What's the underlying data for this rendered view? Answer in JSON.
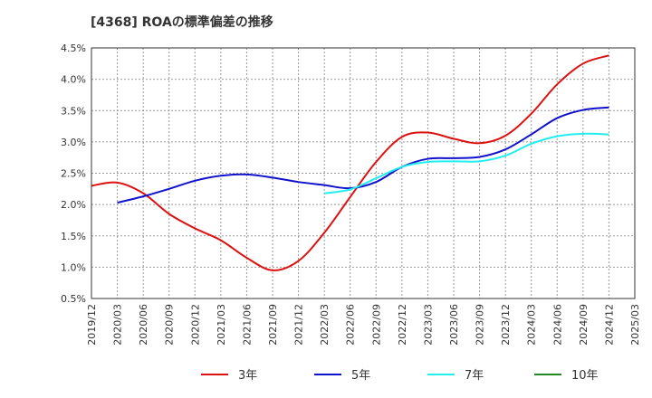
{
  "chart_data": {
    "type": "line",
    "title": "[4368]  ROAの標準偏差の推移",
    "xlabel": "",
    "ylabel": "",
    "ylim": [
      0.5,
      4.5
    ],
    "y_ticks": [
      "0.5%",
      "1.0%",
      "1.5%",
      "2.0%",
      "2.5%",
      "3.0%",
      "3.5%",
      "4.0%",
      "4.5%"
    ],
    "y_tick_values": [
      0.5,
      1.0,
      1.5,
      2.0,
      2.5,
      3.0,
      3.5,
      4.0,
      4.5
    ],
    "x_ticks": [
      "2019/12",
      "2020/03",
      "2020/06",
      "2020/09",
      "2020/12",
      "2021/03",
      "2021/06",
      "2021/09",
      "2021/12",
      "2022/03",
      "2022/06",
      "2022/09",
      "2022/12",
      "2023/03",
      "2023/06",
      "2023/09",
      "2023/12",
      "2024/03",
      "2024/06",
      "2024/09",
      "2024/12",
      "2025/03"
    ],
    "grid": true,
    "legend_position": "bottom",
    "series": [
      {
        "name": "3年",
        "color": "#dd1111",
        "x": [
          "2019/12",
          "2020/03",
          "2020/06",
          "2020/09",
          "2020/12",
          "2021/03",
          "2021/06",
          "2021/09",
          "2021/12",
          "2022/03",
          "2022/06",
          "2022/09",
          "2022/12",
          "2023/03",
          "2023/06",
          "2023/09",
          "2023/12",
          "2024/03",
          "2024/06",
          "2024/09",
          "2024/12"
        ],
        "values": [
          2.3,
          2.35,
          2.18,
          1.85,
          1.62,
          1.43,
          1.15,
          0.95,
          1.1,
          1.55,
          2.12,
          2.68,
          3.08,
          3.15,
          3.05,
          2.98,
          3.1,
          3.45,
          3.92,
          4.25,
          4.38
        ]
      },
      {
        "name": "5年",
        "color": "#1111cc",
        "x": [
          "2020/03",
          "2020/06",
          "2020/09",
          "2020/12",
          "2021/03",
          "2021/06",
          "2021/09",
          "2021/12",
          "2022/03",
          "2022/06",
          "2022/09",
          "2022/12",
          "2023/03",
          "2023/06",
          "2023/09",
          "2023/12",
          "2024/03",
          "2024/06",
          "2024/09",
          "2024/12"
        ],
        "values": [
          2.03,
          2.13,
          2.25,
          2.38,
          2.46,
          2.48,
          2.43,
          2.36,
          2.31,
          2.26,
          2.36,
          2.6,
          2.73,
          2.74,
          2.76,
          2.88,
          3.12,
          3.38,
          3.51,
          3.55
        ]
      },
      {
        "name": "7年",
        "color": "#22eeee",
        "x": [
          "2022/03",
          "2022/06",
          "2022/09",
          "2022/12",
          "2023/03",
          "2023/06",
          "2023/09",
          "2023/12",
          "2024/03",
          "2024/06",
          "2024/09",
          "2024/12"
        ],
        "values": [
          2.18,
          2.24,
          2.42,
          2.6,
          2.68,
          2.69,
          2.69,
          2.78,
          2.97,
          3.09,
          3.13,
          3.12
        ]
      },
      {
        "name": "10年",
        "color": "#228822",
        "x": [],
        "values": []
      }
    ]
  }
}
